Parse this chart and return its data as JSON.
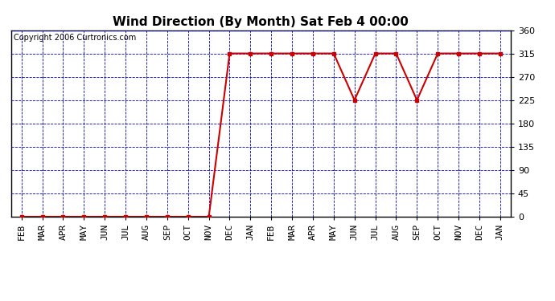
{
  "title": "Wind Direction (By Month) Sat Feb 4 00:00",
  "copyright": "Copyright 2006 Curtronics.com",
  "x_labels": [
    "FEB",
    "MAR",
    "APR",
    "MAY",
    "JUN",
    "JUL",
    "AUG",
    "SEP",
    "OCT",
    "NOV",
    "DEC",
    "JAN",
    "FEB",
    "MAR",
    "APR",
    "MAY",
    "JUN",
    "JUL",
    "AUG",
    "SEP",
    "OCT",
    "NOV",
    "DEC",
    "JAN"
  ],
  "y_values": [
    0,
    0,
    0,
    0,
    0,
    0,
    0,
    0,
    0,
    0,
    315,
    315,
    315,
    315,
    315,
    315,
    225,
    315,
    315,
    225,
    315,
    315,
    315,
    315
  ],
  "yticks": [
    0,
    45,
    90,
    135,
    180,
    225,
    270,
    315,
    360
  ],
  "ylim": [
    0,
    360
  ],
  "line_color": "#cc0000",
  "marker_color": "#cc0000",
  "grid_color": "#0000bb",
  "bg_color": "#ffffff",
  "title_fontsize": 11,
  "copyright_fontsize": 7,
  "tick_fontsize": 8,
  "marker": "s",
  "marker_size": 2.5,
  "line_width": 1.5
}
